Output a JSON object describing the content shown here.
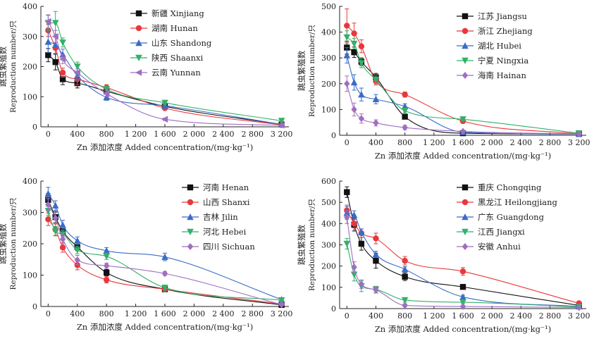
{
  "chart_data": [
    {
      "panel": "top-left",
      "type": "scatter",
      "xlabel": "Zn 添加浓度 Added concentration/(mg·kg⁻¹)",
      "ylabel_cn": "跳虫繁殖数",
      "ylabel_en": "Reproduction number/只",
      "xlim": [
        -100,
        3300
      ],
      "ylim": [
        0,
        400
      ],
      "x_ticks": [
        0,
        400,
        800,
        1200,
        1600,
        2000,
        2400,
        2800,
        3200
      ],
      "x_tick_labels": [
        "0",
        "400",
        "800",
        "1 200",
        "1 600",
        "2 000",
        "2 400",
        "2 800",
        "3 200"
      ],
      "y_ticks": [
        0,
        100,
        200,
        300,
        400
      ],
      "legend": "top-right",
      "series": [
        {
          "name": "新疆 Xinjiang",
          "marker": "square",
          "color": "#111111",
          "x": [
            0,
            100,
            200,
            400,
            800,
            1600,
            3200
          ],
          "y": [
            238,
            215,
            158,
            145,
            118,
            68,
            8
          ],
          "err": [
            22,
            26,
            18,
            16,
            8,
            6,
            3
          ]
        },
        {
          "name": "湖南 Hunan",
          "marker": "circle",
          "color": "#e8383d",
          "x": [
            0,
            100,
            200,
            400,
            800,
            1600,
            3200
          ],
          "y": [
            320,
            262,
            180,
            158,
            130,
            62,
            6
          ],
          "err": [
            20,
            18,
            15,
            18,
            10,
            6,
            3
          ]
        },
        {
          "name": "山东 Shandong",
          "marker": "triangle-up",
          "color": "#3a6cc6",
          "x": [
            0,
            100,
            200,
            400,
            800,
            1600,
            3200
          ],
          "y": [
            282,
            272,
            240,
            170,
            98,
            70,
            8
          ],
          "err": [
            35,
            30,
            18,
            15,
            10,
            6,
            3
          ]
        },
        {
          "name": "陕西 Shaanxi",
          "marker": "triangle-down",
          "color": "#33b06a",
          "x": [
            0,
            100,
            200,
            400,
            800,
            1600,
            3200
          ],
          "y": [
            345,
            345,
            280,
            200,
            125,
            80,
            20
          ],
          "err": [
            25,
            38,
            15,
            15,
            10,
            6,
            3
          ]
        },
        {
          "name": "云南 Yunnan",
          "marker": "triangle-left",
          "color": "#a06ec0",
          "x": [
            0,
            100,
            200,
            400,
            800,
            1600,
            3200
          ],
          "y": [
            350,
            300,
            225,
            180,
            110,
            25,
            5
          ],
          "err": [
            22,
            20,
            15,
            12,
            10,
            4,
            3
          ]
        }
      ]
    },
    {
      "panel": "top-right",
      "type": "scatter",
      "xlabel": "Zn 添加浓度 Added concentration/(mg·kg⁻¹)",
      "ylabel_cn": "跳虫繁殖数",
      "ylabel_en": "Reproduction number/只",
      "xlim": [
        -100,
        3300
      ],
      "ylim": [
        0,
        500
      ],
      "x_ticks": [
        0,
        400,
        800,
        1200,
        1600,
        2000,
        2400,
        2800,
        3200
      ],
      "x_tick_labels": [
        "0",
        "400",
        "800",
        "1 200",
        "1 600",
        "2 000",
        "2 400",
        "2 800",
        "3 200"
      ],
      "y_ticks": [
        0,
        100,
        200,
        300,
        400,
        500
      ],
      "legend": "top-right",
      "series": [
        {
          "name": "江苏 Jiangsu",
          "marker": "square",
          "color": "#111111",
          "x": [
            0,
            100,
            200,
            400,
            800,
            1600,
            3200
          ],
          "y": [
            340,
            322,
            285,
            225,
            72,
            8,
            5
          ],
          "err": [
            25,
            20,
            15,
            15,
            8,
            4,
            3
          ]
        },
        {
          "name": "浙江 Zhejiang",
          "marker": "circle",
          "color": "#e8383d",
          "x": [
            0,
            100,
            200,
            400,
            800,
            1600,
            3200
          ],
          "y": [
            425,
            395,
            345,
            210,
            158,
            55,
            5
          ],
          "err": [
            65,
            40,
            25,
            15,
            10,
            8,
            3
          ]
        },
        {
          "name": "湖北 Hubei",
          "marker": "triangle-up",
          "color": "#3a6cc6",
          "x": [
            0,
            100,
            200,
            400,
            800,
            1600,
            3200
          ],
          "y": [
            310,
            205,
            158,
            140,
            112,
            12,
            5
          ],
          "err": [
            30,
            30,
            25,
            18,
            10,
            4,
            3
          ]
        },
        {
          "name": "宁夏 Ningxia",
          "marker": "triangle-down",
          "color": "#33b06a",
          "x": [
            0,
            100,
            200,
            400,
            800,
            1600,
            3200
          ],
          "y": [
            380,
            355,
            280,
            215,
            95,
            62,
            8
          ],
          "err": [
            25,
            20,
            18,
            15,
            8,
            6,
            3
          ]
        },
        {
          "name": "海南 Hainan",
          "marker": "diamond",
          "color": "#a06ec0",
          "x": [
            0,
            100,
            200,
            400,
            800,
            1600,
            3200
          ],
          "y": [
            200,
            100,
            65,
            48,
            30,
            15,
            5
          ],
          "err": [
            30,
            25,
            18,
            12,
            8,
            4,
            3
          ]
        }
      ]
    },
    {
      "panel": "bottom-left",
      "type": "scatter",
      "xlabel": "Zn 添加浓度 Added concentration/(mg·kg⁻¹)",
      "ylabel_cn": "跳虫繁殖数",
      "ylabel_en": "Reproduction number/只",
      "xlim": [
        -100,
        3300
      ],
      "ylim": [
        0,
        400
      ],
      "x_ticks": [
        0,
        400,
        800,
        1200,
        1600,
        2000,
        2400,
        2800,
        3200
      ],
      "x_tick_labels": [
        "0",
        "400",
        "800",
        "1 200",
        "1 600",
        "2 000",
        "2 400",
        "2 800",
        "3 200"
      ],
      "y_ticks": [
        0,
        100,
        200,
        300,
        400
      ],
      "legend": "top-right",
      "series": [
        {
          "name": "河南 Henan",
          "marker": "square",
          "color": "#111111",
          "x": [
            0,
            100,
            200,
            400,
            800,
            1600,
            3200
          ],
          "y": [
            340,
            285,
            240,
            190,
            108,
            55,
            5
          ],
          "err": [
            20,
            18,
            15,
            12,
            10,
            6,
            3
          ]
        },
        {
          "name": "山西 Shanxi",
          "marker": "circle",
          "color": "#e8383d",
          "x": [
            0,
            100,
            200,
            400,
            800,
            1600,
            3200
          ],
          "y": [
            278,
            245,
            188,
            132,
            85,
            55,
            8
          ],
          "err": [
            20,
            18,
            15,
            15,
            10,
            6,
            3
          ]
        },
        {
          "name": "吉林 Jilin",
          "marker": "triangle-up",
          "color": "#3a6cc6",
          "x": [
            0,
            100,
            200,
            400,
            800,
            1600,
            3200
          ],
          "y": [
            360,
            322,
            260,
            210,
            178,
            158,
            22
          ],
          "err": [
            20,
            15,
            15,
            12,
            10,
            12,
            4
          ]
        },
        {
          "name": "河北 Hebei",
          "marker": "triangle-down",
          "color": "#33b06a",
          "x": [
            0,
            100,
            200,
            400,
            800,
            1600,
            3200
          ],
          "y": [
            305,
            240,
            230,
            180,
            160,
            60,
            20
          ],
          "err": [
            15,
            15,
            12,
            12,
            10,
            8,
            4
          ]
        },
        {
          "name": "四川 Sichuan",
          "marker": "diamond",
          "color": "#a06ec0",
          "x": [
            0,
            100,
            200,
            400,
            800,
            1600,
            3200
          ],
          "y": [
            325,
            282,
            215,
            148,
            130,
            105,
            6
          ],
          "err": [
            20,
            18,
            15,
            15,
            8,
            6,
            3
          ]
        }
      ]
    },
    {
      "panel": "bottom-right",
      "type": "scatter",
      "xlabel": "Zn 添加浓度 Added concentration/(mg·kg⁻¹)",
      "ylabel_cn": "跳虫繁殖数",
      "ylabel_en": "Reproduction number/只",
      "xlim": [
        -100,
        3300
      ],
      "ylim": [
        0,
        600
      ],
      "x_ticks": [
        0,
        400,
        800,
        1200,
        1600,
        2000,
        2400,
        2800,
        3200
      ],
      "x_tick_labels": [
        "0",
        "400",
        "800",
        "1 200",
        "1 600",
        "2 000",
        "2 400",
        "2 800",
        "3 200"
      ],
      "y_ticks": [
        0,
        100,
        200,
        300,
        400,
        500,
        600
      ],
      "legend": "top-right",
      "series": [
        {
          "name": "重庆 Chongqing",
          "marker": "square",
          "color": "#111111",
          "x": [
            0,
            100,
            200,
            400,
            800,
            1600,
            3200
          ],
          "y": [
            548,
            395,
            305,
            225,
            150,
            102,
            15
          ],
          "err": [
            25,
            30,
            30,
            35,
            18,
            8,
            4
          ]
        },
        {
          "name": "黑龙江 Heilongjiang",
          "marker": "circle",
          "color": "#e8383d",
          "x": [
            0,
            100,
            200,
            400,
            800,
            1600,
            3200
          ],
          "y": [
            462,
            400,
            355,
            330,
            225,
            175,
            25
          ],
          "err": [
            25,
            20,
            20,
            25,
            20,
            18,
            4
          ]
        },
        {
          "name": "广东 Guangdong",
          "marker": "triangle-up",
          "color": "#3a6cc6",
          "x": [
            0,
            100,
            200,
            400,
            800,
            1600,
            3200
          ],
          "y": [
            450,
            440,
            360,
            255,
            185,
            55,
            10
          ],
          "err": [
            30,
            20,
            15,
            15,
            12,
            8,
            3
          ]
        },
        {
          "name": "江西 Jiangxi",
          "marker": "triangle-down",
          "color": "#33b06a",
          "x": [
            0,
            100,
            200,
            400,
            800,
            1600,
            3200
          ],
          "y": [
            305,
            160,
            105,
            90,
            40,
            30,
            8
          ],
          "err": [
            25,
            30,
            25,
            15,
            10,
            6,
            3
          ]
        },
        {
          "name": "安徽 Anhui",
          "marker": "diamond",
          "color": "#a06ec0",
          "x": [
            0,
            100,
            200,
            400,
            800,
            1600,
            3200
          ],
          "y": [
            430,
            195,
            115,
            88,
            15,
            10,
            5
          ],
          "err": [
            30,
            25,
            20,
            15,
            6,
            4,
            3
          ]
        }
      ]
    }
  ]
}
